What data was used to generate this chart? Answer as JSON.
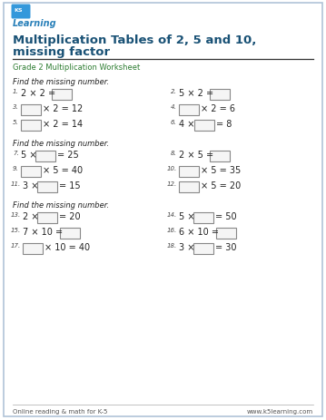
{
  "title_line1": "Multiplication Tables of 2, 5 and 10,",
  "title_line2": "missing factor",
  "subtitle": "Grade 2 Multiplication Worksheet",
  "section_header": "Find the missing number.",
  "footer_left": "Online reading & math for K-5",
  "footer_right": "www.k5learning.com",
  "bg_color": "#ffffff",
  "border_color": "#b0c4d8",
  "title_color": "#1a5276",
  "subtitle_color": "#2e7d32",
  "text_color": "#222222",
  "num_color": "#444444",
  "box_edge_color": "#888888",
  "box_face_color": "#f5f5f5",
  "line_color": "#333333",
  "footer_color": "#555555",
  "logo_bg": "#2980b9",
  "logo_text": "#ffffff",
  "logo_learning_color": "#2980b9"
}
